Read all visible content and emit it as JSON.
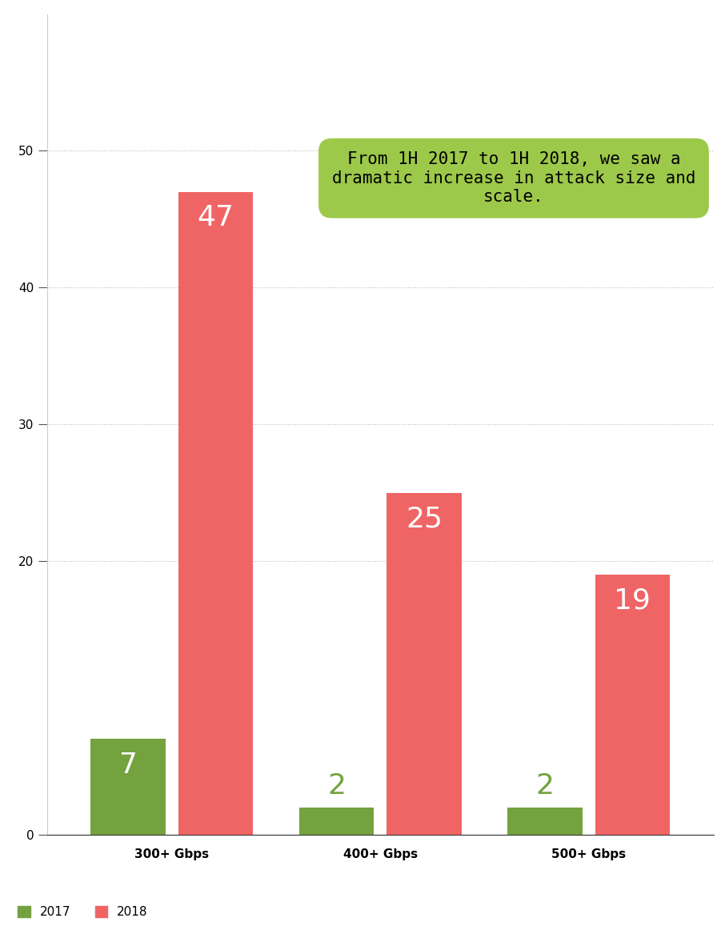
{
  "chart_data": {
    "type": "bar",
    "categories": [
      "300+ Gbps",
      "400+ Gbps",
      "500+ Gbps"
    ],
    "series": [
      {
        "name": "2017",
        "color": "#74a23f",
        "values": [
          7,
          2,
          2
        ]
      },
      {
        "name": "2018",
        "color": "#ef6565",
        "values": [
          47,
          25,
          19
        ]
      }
    ],
    "ylim": [
      0,
      60
    ],
    "yticks": [
      0,
      20,
      30,
      40,
      50
    ],
    "grid": true,
    "data_labels": true,
    "legend": "lower left",
    "annotation": "From 1H 2017 to 1H 2018, we saw a dramatic increase in attack size and scale."
  }
}
